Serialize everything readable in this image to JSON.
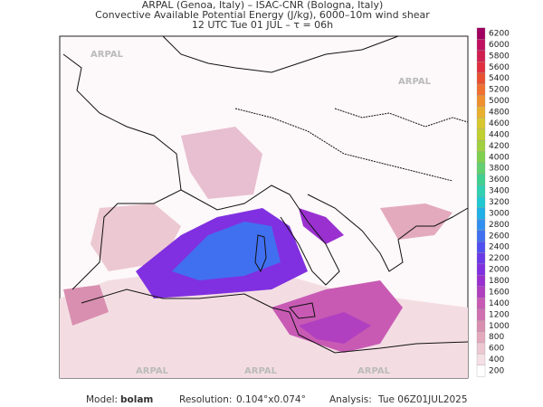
{
  "header": {
    "line1": "ARPAL (Genoa, Italy)  –  ISAC-CNR (Bologna, Italy)",
    "line2": "Convective Available Potential Energy (J/kg), 6000–10m wind shear",
    "line3": "12 UTC Tue 01 JUL  –  τ = 06h"
  },
  "watermark": "ARPAL",
  "colorbar": {
    "levels": [
      200,
      400,
      600,
      800,
      1000,
      1200,
      1400,
      1600,
      1800,
      2000,
      2200,
      2400,
      2600,
      2800,
      3000,
      3200,
      3400,
      3600,
      3800,
      4000,
      4200,
      4400,
      4600,
      4800,
      5000,
      5200,
      5400,
      5600,
      5800,
      6000,
      6200
    ],
    "colors": [
      "#ffffff",
      "#f5e0e6",
      "#ecc8d2",
      "#e3aabd",
      "#d98fb0",
      "#d070b0",
      "#c85ab4",
      "#b040c0",
      "#9a30d0",
      "#8030e0",
      "#6a3ae8",
      "#5050f0",
      "#4070f0",
      "#3090f0",
      "#20b0e8",
      "#20c8d0",
      "#30d0b0",
      "#40d090",
      "#60d070",
      "#80d050",
      "#a0d040",
      "#c0d030",
      "#d8c830",
      "#e8b030",
      "#f09030",
      "#f07030",
      "#e85030",
      "#e03040",
      "#d02050",
      "#c01060",
      "#a00060"
    ]
  },
  "footer": {
    "model_label": "Model:",
    "model": "bolam",
    "resolution_label": "Resolution:",
    "resolution": "0.104°x0.074°",
    "analysis_label": "Analysis:",
    "analysis": "Tue 06Z01JUL2025"
  }
}
